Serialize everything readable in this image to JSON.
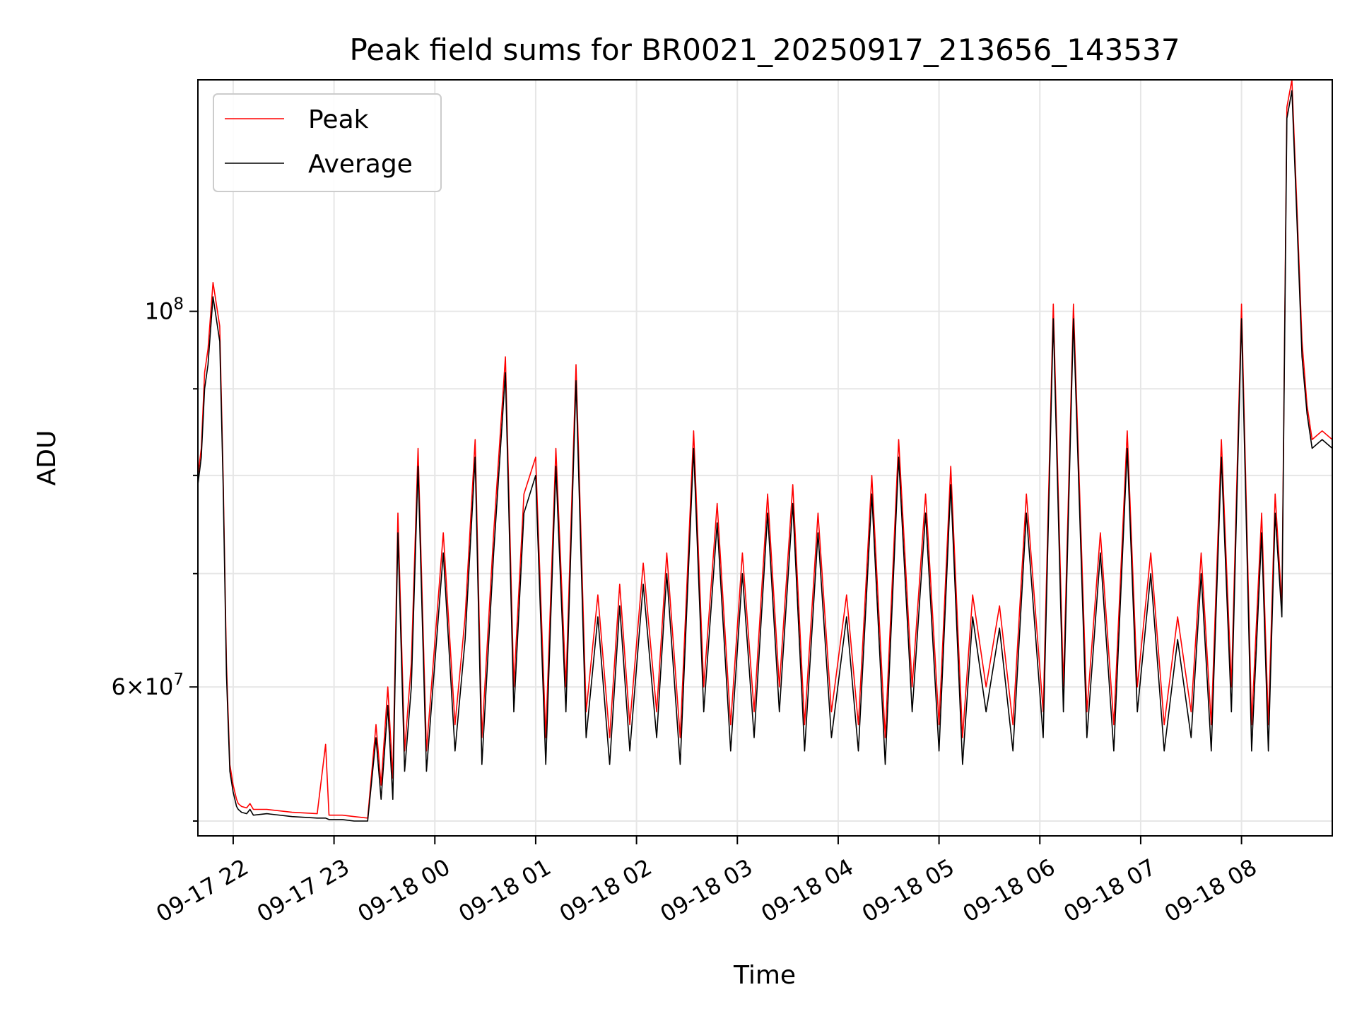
{
  "chart_data": {
    "type": "line",
    "title": "Peak field sums for BR0021_20250917_213656_143537",
    "xlabel": "Time",
    "ylabel": "ADU",
    "y_scale": "log",
    "xlim": [
      "2025-09-17 21:39",
      "2025-09-18 08:54"
    ],
    "ylim": [
      49000000,
      137000000
    ],
    "grid": true,
    "legend_position": "top-left",
    "x_ticks": [
      "09-17 22",
      "09-17 23",
      "09-18 00",
      "09-18 01",
      "09-18 02",
      "09-18 03",
      "09-18 04",
      "09-18 05",
      "09-18 06",
      "09-18 07",
      "09-18 08"
    ],
    "x_tick_times": [
      "2025-09-17 22:00",
      "2025-09-17 23:00",
      "2025-09-18 00:00",
      "2025-09-18 01:00",
      "2025-09-18 02:00",
      "2025-09-18 03:00",
      "2025-09-18 04:00",
      "2025-09-18 05:00",
      "2025-09-18 06:00",
      "2025-09-18 07:00",
      "2025-09-18 08:00"
    ],
    "y_major_ticks": [
      {
        "value": 100000000,
        "mantissa": "",
        "base": "10",
        "exp": "8"
      },
      {
        "value": 60000000,
        "mantissa": "6×",
        "base": "10",
        "exp": "7"
      }
    ],
    "y_minor_ticks": [
      70000000,
      80000000,
      90000000,
      50000000
    ],
    "series": [
      {
        "name": "Peak",
        "color": "#ff0000",
        "x": [
          "2025-09-17 21:39",
          "2025-09-17 21:41",
          "2025-09-17 21:43",
          "2025-09-17 21:45",
          "2025-09-17 21:48",
          "2025-09-17 21:52",
          "2025-09-17 21:54",
          "2025-09-17 21:56",
          "2025-09-17 21:58",
          "2025-09-17 22:00",
          "2025-09-17 22:02",
          "2025-09-17 22:03",
          "2025-09-17 22:05",
          "2025-09-17 22:08",
          "2025-09-17 22:10",
          "2025-09-17 22:12",
          "2025-09-17 22:20",
          "2025-09-17 22:35",
          "2025-09-17 22:50",
          "2025-09-17 22:55",
          "2025-09-17 22:57",
          "2025-09-17 23:05",
          "2025-09-17 23:12",
          "2025-09-17 23:20",
          "2025-09-17 23:25",
          "2025-09-17 23:28",
          "2025-09-17 23:32",
          "2025-09-17 23:35",
          "2025-09-17 23:38",
          "2025-09-17 23:42",
          "2025-09-17 23:46",
          "2025-09-17 23:50",
          "2025-09-17 23:55",
          "2025-09-18 00:05",
          "2025-09-18 00:12",
          "2025-09-18 00:18",
          "2025-09-18 00:24",
          "2025-09-18 00:28",
          "2025-09-18 00:35",
          "2025-09-18 00:42",
          "2025-09-18 00:47",
          "2025-09-18 00:53",
          "2025-09-18 01:00",
          "2025-09-18 01:06",
          "2025-09-18 01:12",
          "2025-09-18 01:18",
          "2025-09-18 01:24",
          "2025-09-18 01:30",
          "2025-09-18 01:37",
          "2025-09-18 01:44",
          "2025-09-18 01:50",
          "2025-09-18 01:56",
          "2025-09-18 02:04",
          "2025-09-18 02:12",
          "2025-09-18 02:18",
          "2025-09-18 02:26",
          "2025-09-18 02:34",
          "2025-09-18 02:40",
          "2025-09-18 02:48",
          "2025-09-18 02:56",
          "2025-09-18 03:03",
          "2025-09-18 03:10",
          "2025-09-18 03:18",
          "2025-09-18 03:25",
          "2025-09-18 03:33",
          "2025-09-18 03:40",
          "2025-09-18 03:48",
          "2025-09-18 03:56",
          "2025-09-18 04:05",
          "2025-09-18 04:12",
          "2025-09-18 04:20",
          "2025-09-18 04:28",
          "2025-09-18 04:36",
          "2025-09-18 04:44",
          "2025-09-18 04:52",
          "2025-09-18 05:00",
          "2025-09-18 05:07",
          "2025-09-18 05:14",
          "2025-09-18 05:20",
          "2025-09-18 05:28",
          "2025-09-18 05:36",
          "2025-09-18 05:44",
          "2025-09-18 05:52",
          "2025-09-18 06:02",
          "2025-09-18 06:08",
          "2025-09-18 06:14",
          "2025-09-18 06:20",
          "2025-09-18 06:28",
          "2025-09-18 06:36",
          "2025-09-18 06:44",
          "2025-09-18 06:52",
          "2025-09-18 06:58",
          "2025-09-18 07:06",
          "2025-09-18 07:14",
          "2025-09-18 07:22",
          "2025-09-18 07:30",
          "2025-09-18 07:36",
          "2025-09-18 07:42",
          "2025-09-18 07:48",
          "2025-09-18 07:54",
          "2025-09-18 08:00",
          "2025-09-18 08:06",
          "2025-09-18 08:12",
          "2025-09-18 08:16",
          "2025-09-18 08:20",
          "2025-09-18 08:24",
          "2025-09-18 08:27",
          "2025-09-18 08:30",
          "2025-09-18 08:33",
          "2025-09-18 08:36",
          "2025-09-18 08:39",
          "2025-09-18 08:42",
          "2025-09-18 08:48",
          "2025-09-18 08:54"
        ],
        "y": [
          80000000,
          83000000,
          92000000,
          95000000,
          104000000,
          98000000,
          80000000,
          62000000,
          54000000,
          52500000,
          51500000,
          51200000,
          51000000,
          50900000,
          51200000,
          50800000,
          50800000,
          50600000,
          50500000,
          55500000,
          50400000,
          50400000,
          50300000,
          50200000,
          57000000,
          52500000,
          60000000,
          53000000,
          76000000,
          55000000,
          62000000,
          83000000,
          55000000,
          74000000,
          57000000,
          66000000,
          84000000,
          56000000,
          74000000,
          94000000,
          60000000,
          78000000,
          82000000,
          56000000,
          83000000,
          60000000,
          93000000,
          58000000,
          68000000,
          56000000,
          69000000,
          57000000,
          71000000,
          58000000,
          72000000,
          56000000,
          85000000,
          60000000,
          77000000,
          57000000,
          72000000,
          58000000,
          78000000,
          60000000,
          79000000,
          57000000,
          76000000,
          58000000,
          68000000,
          57000000,
          80000000,
          56000000,
          84000000,
          60000000,
          78000000,
          57000000,
          81000000,
          56000000,
          68000000,
          60000000,
          67000000,
          57000000,
          78000000,
          58000000,
          101000000,
          60000000,
          101000000,
          58000000,
          74000000,
          57000000,
          85000000,
          60000000,
          72000000,
          57000000,
          66000000,
          58000000,
          72000000,
          57000000,
          84000000,
          60000000,
          101000000,
          57000000,
          76000000,
          57000000,
          78000000,
          67000000,
          132000000,
          137000000,
          115000000,
          96000000,
          88000000,
          84000000,
          85000000,
          84000000
        ]
      },
      {
        "name": "Average",
        "color": "#000000",
        "x": [
          "2025-09-17 21:39",
          "2025-09-17 21:41",
          "2025-09-17 21:43",
          "2025-09-17 21:45",
          "2025-09-17 21:48",
          "2025-09-17 21:52",
          "2025-09-17 21:54",
          "2025-09-17 21:56",
          "2025-09-17 21:58",
          "2025-09-17 22:00",
          "2025-09-17 22:02",
          "2025-09-17 22:03",
          "2025-09-17 22:05",
          "2025-09-17 22:08",
          "2025-09-17 22:10",
          "2025-09-17 22:12",
          "2025-09-17 22:20",
          "2025-09-17 22:35",
          "2025-09-17 22:50",
          "2025-09-17 22:55",
          "2025-09-17 22:57",
          "2025-09-17 23:05",
          "2025-09-17 23:12",
          "2025-09-17 23:20",
          "2025-09-17 23:25",
          "2025-09-17 23:28",
          "2025-09-17 23:32",
          "2025-09-17 23:35",
          "2025-09-17 23:38",
          "2025-09-17 23:42",
          "2025-09-17 23:46",
          "2025-09-17 23:50",
          "2025-09-17 23:55",
          "2025-09-18 00:05",
          "2025-09-18 00:12",
          "2025-09-18 00:18",
          "2025-09-18 00:24",
          "2025-09-18 00:28",
          "2025-09-18 00:35",
          "2025-09-18 00:42",
          "2025-09-18 00:47",
          "2025-09-18 00:53",
          "2025-09-18 01:00",
          "2025-09-18 01:06",
          "2025-09-18 01:12",
          "2025-09-18 01:18",
          "2025-09-18 01:24",
          "2025-09-18 01:30",
          "2025-09-18 01:37",
          "2025-09-18 01:44",
          "2025-09-18 01:50",
          "2025-09-18 01:56",
          "2025-09-18 02:04",
          "2025-09-18 02:12",
          "2025-09-18 02:18",
          "2025-09-18 02:26",
          "2025-09-18 02:34",
          "2025-09-18 02:40",
          "2025-09-18 02:48",
          "2025-09-18 02:56",
          "2025-09-18 03:03",
          "2025-09-18 03:10",
          "2025-09-18 03:18",
          "2025-09-18 03:25",
          "2025-09-18 03:33",
          "2025-09-18 03:40",
          "2025-09-18 03:48",
          "2025-09-18 03:56",
          "2025-09-18 04:05",
          "2025-09-18 04:12",
          "2025-09-18 04:20",
          "2025-09-18 04:28",
          "2025-09-18 04:36",
          "2025-09-18 04:44",
          "2025-09-18 04:52",
          "2025-09-18 05:00",
          "2025-09-18 05:07",
          "2025-09-18 05:14",
          "2025-09-18 05:20",
          "2025-09-18 05:28",
          "2025-09-18 05:36",
          "2025-09-18 05:44",
          "2025-09-18 05:52",
          "2025-09-18 06:02",
          "2025-09-18 06:08",
          "2025-09-18 06:14",
          "2025-09-18 06:20",
          "2025-09-18 06:28",
          "2025-09-18 06:36",
          "2025-09-18 06:44",
          "2025-09-18 06:52",
          "2025-09-18 06:58",
          "2025-09-18 07:06",
          "2025-09-18 07:14",
          "2025-09-18 07:22",
          "2025-09-18 07:30",
          "2025-09-18 07:36",
          "2025-09-18 07:42",
          "2025-09-18 07:48",
          "2025-09-18 07:54",
          "2025-09-18 08:00",
          "2025-09-18 08:06",
          "2025-09-18 08:12",
          "2025-09-18 08:16",
          "2025-09-18 08:20",
          "2025-09-18 08:24",
          "2025-09-18 08:27",
          "2025-09-18 08:30",
          "2025-09-18 08:33",
          "2025-09-18 08:36",
          "2025-09-18 08:39",
          "2025-09-18 08:42",
          "2025-09-18 08:48",
          "2025-09-18 08:54"
        ],
        "y": [
          79000000,
          82000000,
          90000000,
          93000000,
          102000000,
          96000000,
          79000000,
          61000000,
          53500000,
          52000000,
          51000000,
          50800000,
          50600000,
          50500000,
          50800000,
          50400000,
          50500000,
          50300000,
          50200000,
          50200000,
          50100000,
          50100000,
          50000000,
          50000000,
          56000000,
          51500000,
          58500000,
          51500000,
          74000000,
          53500000,
          60000000,
          81000000,
          53500000,
          72000000,
          55000000,
          64000000,
          82000000,
          54000000,
          72000000,
          92000000,
          58000000,
          76000000,
          80000000,
          54000000,
          81000000,
          58000000,
          91000000,
          56000000,
          66000000,
          54000000,
          67000000,
          55000000,
          69000000,
          56000000,
          70000000,
          54000000,
          83000000,
          58000000,
          75000000,
          55000000,
          70000000,
          56000000,
          76000000,
          58000000,
          77000000,
          55000000,
          74000000,
          56000000,
          66000000,
          55000000,
          78000000,
          54000000,
          82000000,
          58000000,
          76000000,
          55000000,
          79000000,
          54000000,
          66000000,
          58000000,
          65000000,
          55000000,
          76000000,
          56000000,
          99000000,
          58000000,
          99000000,
          56000000,
          72000000,
          55000000,
          83000000,
          58000000,
          70000000,
          55000000,
          64000000,
          56000000,
          70000000,
          55000000,
          82000000,
          58000000,
          99000000,
          55000000,
          74000000,
          55000000,
          76000000,
          66000000,
          130000000,
          135000000,
          113000000,
          94000000,
          87000000,
          83000000,
          84000000,
          83000000
        ]
      }
    ]
  }
}
